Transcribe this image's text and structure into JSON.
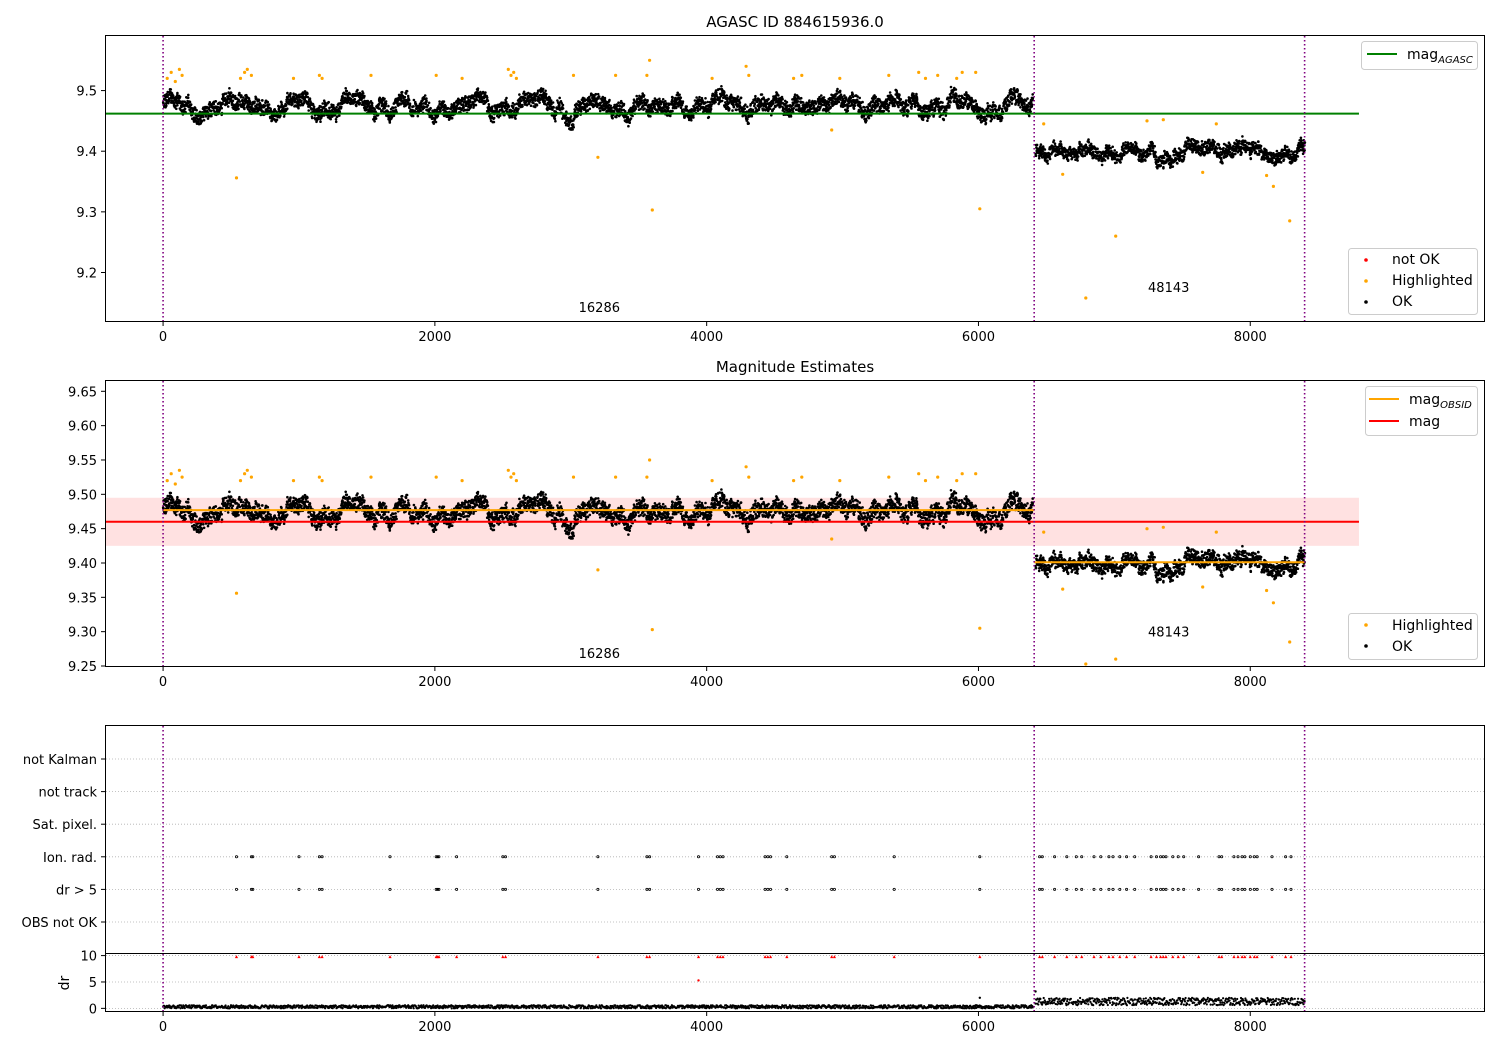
{
  "chart_data": [
    {
      "type": "scatter",
      "title": "AGASC ID 884615936.0",
      "xlim": [
        -420,
        9720
      ],
      "ylim": [
        9.12,
        9.59
      ],
      "xticks": [
        "0",
        "2000",
        "4000",
        "6000",
        "8000"
      ],
      "yticks": [
        "9.2",
        "9.3",
        "9.4",
        "9.5"
      ],
      "vlines": [
        0,
        6410,
        8400
      ],
      "obsids": [
        {
          "label": "16286",
          "x": 3210,
          "y": 9.135
        },
        {
          "label": "48143",
          "x": 7400,
          "y": 9.168
        }
      ],
      "hlines": [
        {
          "name": "mag_AGASC",
          "y": 9.462,
          "x": [
            -420,
            8800
          ],
          "color": "#008000"
        }
      ],
      "series": [
        {
          "name": "OK",
          "color": "#000000",
          "segments": [
            {
              "x": [
                0,
                6400
              ],
              "base": 9.475,
              "spread": 0.025
            },
            {
              "x": [
                6420,
                8400
              ],
              "base": 9.402,
              "spread": 0.022
            }
          ]
        },
        {
          "name": "Highlighted",
          "color": "#ffa500",
          "points": [
            [
              30,
              9.52
            ],
            [
              60,
              9.53
            ],
            [
              90,
              9.515
            ],
            [
              120,
              9.535
            ],
            [
              140,
              9.525
            ],
            [
              540,
              9.356
            ],
            [
              570,
              9.52
            ],
            [
              600,
              9.53
            ],
            [
              620,
              9.535
            ],
            [
              650,
              9.525
            ],
            [
              960,
              9.52
            ],
            [
              1150,
              9.525
            ],
            [
              1170,
              9.52
            ],
            [
              1530,
              9.525
            ],
            [
              2010,
              9.525
            ],
            [
              2200,
              9.52
            ],
            [
              2540,
              9.535
            ],
            [
              2560,
              9.525
            ],
            [
              2580,
              9.53
            ],
            [
              2600,
              9.52
            ],
            [
              3020,
              9.525
            ],
            [
              3200,
              9.39
            ],
            [
              3330,
              9.525
            ],
            [
              3560,
              9.525
            ],
            [
              3580,
              9.55
            ],
            [
              3600,
              9.303
            ],
            [
              4040,
              9.52
            ],
            [
              4290,
              9.54
            ],
            [
              4310,
              9.525
            ],
            [
              4640,
              9.52
            ],
            [
              4700,
              9.525
            ],
            [
              4920,
              9.435
            ],
            [
              4980,
              9.52
            ],
            [
              5340,
              9.525
            ],
            [
              5560,
              9.53
            ],
            [
              5610,
              9.52
            ],
            [
              5700,
              9.525
            ],
            [
              5840,
              9.52
            ],
            [
              5880,
              9.53
            ],
            [
              5980,
              9.53
            ],
            [
              6010,
              9.305
            ],
            [
              6480,
              9.445
            ],
            [
              6620,
              9.362
            ],
            [
              6790,
              9.158
            ],
            [
              7010,
              9.26
            ],
            [
              7240,
              9.45
            ],
            [
              7360,
              9.452
            ],
            [
              7650,
              9.365
            ],
            [
              7750,
              9.445
            ],
            [
              8120,
              9.36
            ],
            [
              8170,
              9.342
            ],
            [
              8290,
              9.285
            ]
          ]
        },
        {
          "name": "not OK",
          "color": "#ff0000",
          "points": []
        }
      ],
      "legend_upper": [
        "mag_AGASC"
      ],
      "legend_lower": [
        "not OK",
        "Highlighted",
        "OK"
      ]
    },
    {
      "type": "scatter",
      "title": "Magnitude Estimates",
      "xlim": [
        -420,
        9720
      ],
      "ylim": [
        9.25,
        9.665
      ],
      "xticks": [
        "0",
        "2000",
        "4000",
        "6000",
        "8000"
      ],
      "yticks": [
        "9.25",
        "9.30",
        "9.35",
        "9.40",
        "9.45",
        "9.50",
        "9.55",
        "9.60",
        "9.65"
      ],
      "vlines": [
        0,
        6410,
        8400
      ],
      "obsids": [
        {
          "label": "16286",
          "x": 3210,
          "y": 9.262
        },
        {
          "label": "48143",
          "x": 7400,
          "y": 9.293
        }
      ],
      "band": {
        "y": [
          9.425,
          9.495
        ],
        "x": [
          -420,
          8800
        ],
        "color": "#ffaaaa"
      },
      "hlines": [
        {
          "name": "mag",
          "y": 9.46,
          "x": [
            -420,
            8800
          ],
          "color": "#ff0000"
        },
        {
          "name": "mag_OBSID",
          "y": 9.477,
          "x": [
            0,
            6410
          ],
          "color": "#ffa500"
        },
        {
          "name": "mag_OBSID",
          "y": 9.401,
          "x": [
            6410,
            8400
          ],
          "color": "#ffa500"
        }
      ],
      "series": [
        {
          "name": "OK",
          "color": "#000000",
          "same_as_above": true
        },
        {
          "name": "Highlighted",
          "color": "#ffa500",
          "same_as_above": true
        }
      ],
      "legend_upper": [
        "mag_OBSID",
        "mag"
      ],
      "legend_lower": [
        "Highlighted",
        "OK"
      ]
    },
    {
      "type": "scatter",
      "xlim": [
        -420,
        9720
      ],
      "categories": [
        "not Kalman",
        "not track",
        "Sat. pixel.",
        "Ion. rad.",
        "dr > 5",
        "OBS not OK"
      ],
      "flag_times": [
        540,
        650,
        660,
        1000,
        1150,
        1170,
        1670,
        2010,
        2020,
        2030,
        2160,
        2500,
        2520,
        3200,
        3560,
        3580,
        3940,
        4080,
        4100,
        4120,
        4430,
        4450,
        4470,
        4590,
        4920,
        4940,
        5380,
        6010,
        6450,
        6470,
        6560,
        6650,
        6720,
        6760,
        6850,
        6900,
        6960,
        6990,
        7040,
        7090,
        7150,
        7270,
        7310,
        7340,
        7360,
        7380,
        7430,
        7470,
        7510,
        7620,
        7770,
        7790,
        7880,
        7910,
        7940,
        7960,
        8000,
        8030,
        8050,
        8160,
        8260,
        8300
      ],
      "vlines": [
        0,
        6410,
        8400
      ]
    },
    {
      "type": "line",
      "xlim": [
        -420,
        9720
      ],
      "ylim": [
        -0.5,
        10.3
      ],
      "yticks": [
        "0",
        "5",
        "10"
      ],
      "ylabel": "dr",
      "segments": [
        {
          "x": [
            0,
            6400
          ],
          "base": 0.3,
          "spread": 0.3
        },
        {
          "x": [
            6420,
            8400
          ],
          "base": 1.3,
          "spread": 0.7
        }
      ],
      "extra_points": [
        [
          3940,
          5.3
        ],
        [
          6010,
          2.0
        ],
        [
          6420,
          3.2
        ]
      ],
      "clipped_red_at": 9.8,
      "xticks": [
        "0",
        "2000",
        "4000",
        "6000",
        "8000"
      ],
      "vlines": [
        0,
        6410,
        8400
      ]
    }
  ],
  "legend_labels": {
    "mag_AGASC_base": "mag",
    "mag_AGASC_sub": "AGASC",
    "mag_OBSID_base": "mag",
    "mag_OBSID_sub": "OBSID",
    "mag": "mag",
    "not_ok": "not OK",
    "highlighted": "Highlighted",
    "ok": "OK"
  }
}
